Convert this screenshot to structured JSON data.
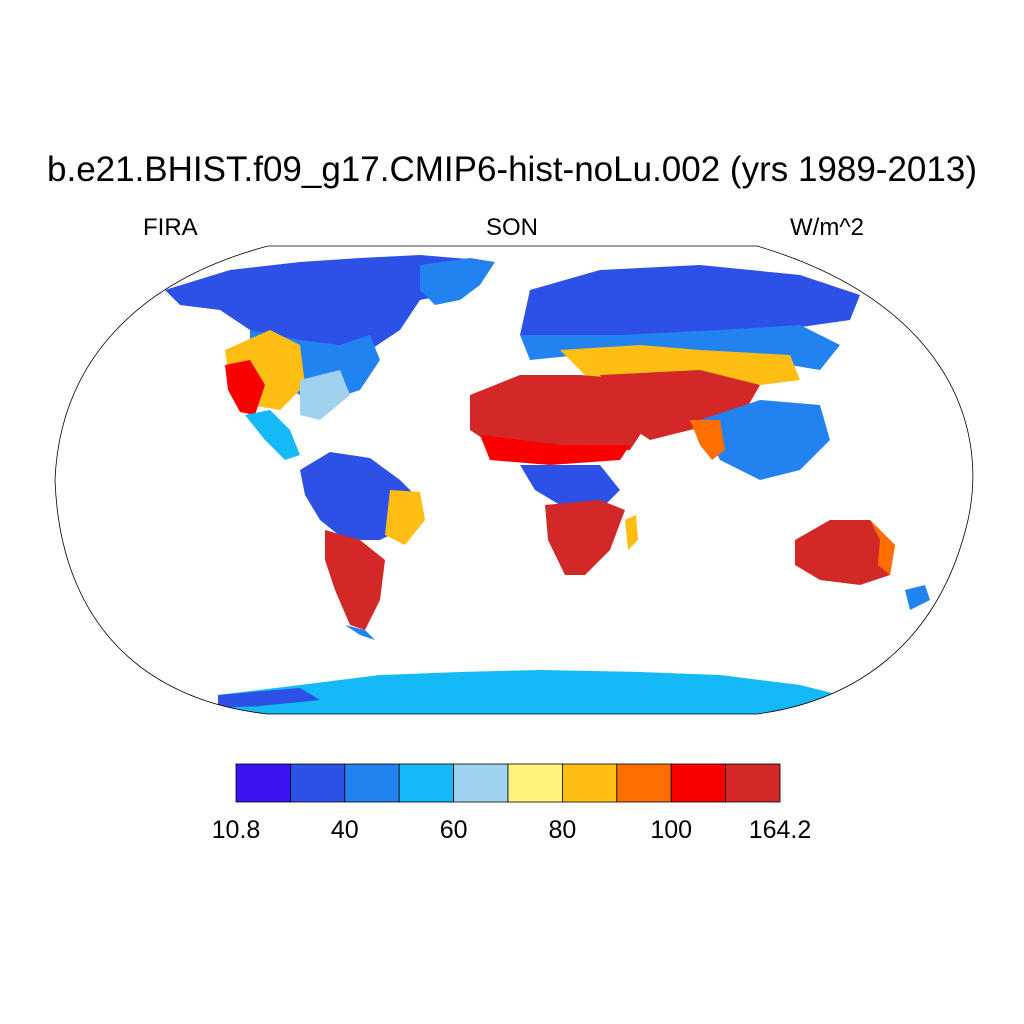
{
  "title": "b.e21.BHIST.f09_g17.CMIP6-hist-noLu.002 (yrs 1989-2013)",
  "left_label": "FIRA",
  "center_label": "SON",
  "right_label": "W/m^2",
  "colorbar": {
    "colors": [
      "#3c14f0",
      "#2d50e6",
      "#2283f0",
      "#14b9f5",
      "#a0d2f0",
      "#fff27d",
      "#ffbe14",
      "#ff6e00",
      "#fa0000",
      "#d22828"
    ],
    "ticks": [
      "10.8",
      "40",
      "60",
      "80",
      "100",
      "164.2"
    ],
    "tick_positions": [
      0,
      2,
      4,
      6,
      8,
      10
    ]
  }
}
